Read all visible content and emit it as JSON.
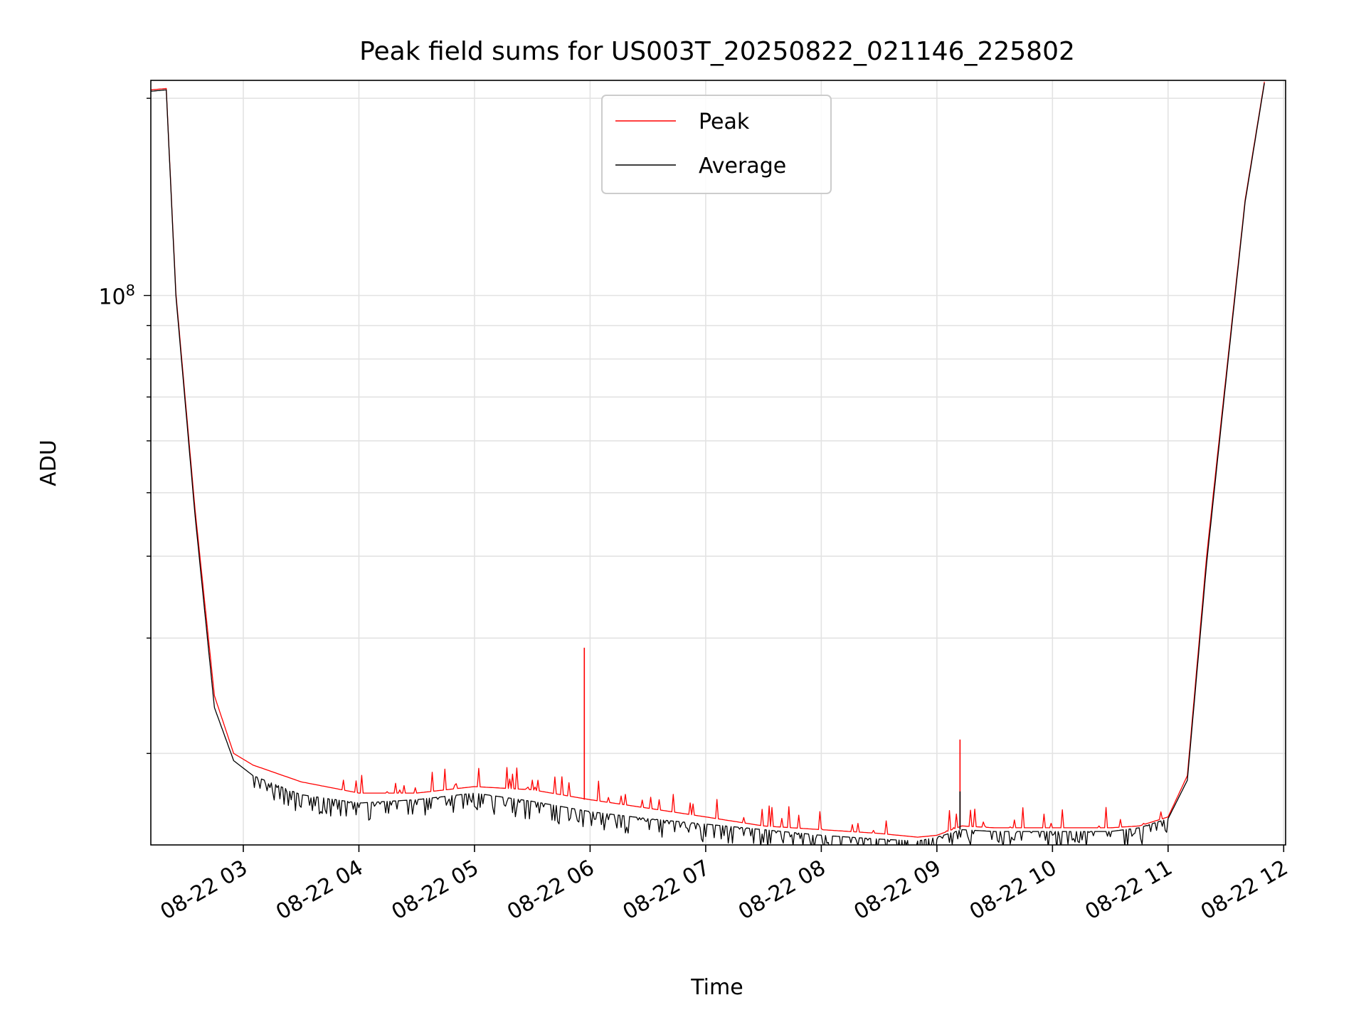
{
  "chart_data": {
    "type": "line",
    "title": "Peak field sums for US003T_20250822_021146_225802",
    "xlabel": "Time",
    "ylabel": "ADU",
    "yscale": "log",
    "grid": true,
    "legend_position": "upper center",
    "xlim": [
      "2025-08-22 02:12",
      "2025-08-22 12:01"
    ],
    "ylim": [
      14500000,
      213000000
    ],
    "x_ticks": [
      "08-22 03",
      "08-22 04",
      "08-22 05",
      "08-22 06",
      "08-22 07",
      "08-22 08",
      "08-22 09",
      "08-22 10",
      "08-22 11",
      "08-22 12"
    ],
    "x_tick_times": [
      "2025-08-22 03:00",
      "2025-08-22 04:00",
      "2025-08-22 05:00",
      "2025-08-22 06:00",
      "2025-08-22 07:00",
      "2025-08-22 08:00",
      "2025-08-22 09:00",
      "2025-08-22 10:00",
      "2025-08-22 11:00",
      "2025-08-22 12:00"
    ],
    "y_ticks": [
      {
        "value": 100000000,
        "base": "10",
        "exponent": "8"
      }
    ],
    "series": [
      {
        "name": "Peak",
        "color": "#ff0000",
        "x": [
          "2025-08-22 02:12",
          "2025-08-22 02:20",
          "2025-08-22 02:25",
          "2025-08-22 02:35",
          "2025-08-22 02:45",
          "2025-08-22 02:55",
          "2025-08-22 03:05",
          "2025-08-22 03:30",
          "2025-08-22 04:00",
          "2025-08-22 04:30",
          "2025-08-22 05:00",
          "2025-08-22 05:30",
          "2025-08-22 06:00",
          "2025-08-22 06:30",
          "2025-08-22 07:00",
          "2025-08-22 07:30",
          "2025-08-22 08:00",
          "2025-08-22 08:30",
          "2025-08-22 08:50",
          "2025-08-22 09:00",
          "2025-08-22 09:13",
          "2025-08-22 09:30",
          "2025-08-22 10:00",
          "2025-08-22 10:30",
          "2025-08-22 10:45",
          "2025-08-22 11:00",
          "2025-08-22 11:10",
          "2025-08-22 11:20",
          "2025-08-22 11:30",
          "2025-08-22 11:40",
          "2025-08-22 11:50"
        ],
        "y": [
          206000000,
          207000000,
          101000000,
          47000000,
          24500000,
          20000000,
          19200000,
          18100000,
          17400000,
          17400000,
          17800000,
          17600000,
          17000000,
          16500000,
          16000000,
          15500000,
          15300000,
          15100000,
          14900000,
          15000000,
          15500000,
          15400000,
          15400000,
          15400000,
          15500000,
          16000000,
          18500000,
          40000000,
          75000000,
          140000000,
          212000000
        ],
        "spikes": [
          {
            "x": "2025-08-22 05:57",
            "y": 29000000
          },
          {
            "x": "2025-08-22 09:12",
            "y": 21000000
          }
        ]
      },
      {
        "name": "Average",
        "color": "#000000",
        "x": [
          "2025-08-22 02:12",
          "2025-08-22 02:20",
          "2025-08-22 02:25",
          "2025-08-22 02:35",
          "2025-08-22 02:45",
          "2025-08-22 02:55",
          "2025-08-22 03:05",
          "2025-08-22 03:30",
          "2025-08-22 04:00",
          "2025-08-22 04:30",
          "2025-08-22 05:00",
          "2025-08-22 05:30",
          "2025-08-22 06:00",
          "2025-08-22 06:30",
          "2025-08-22 07:00",
          "2025-08-22 07:30",
          "2025-08-22 08:00",
          "2025-08-22 08:30",
          "2025-08-22 08:50",
          "2025-08-22 09:00",
          "2025-08-22 09:13",
          "2025-08-22 09:30",
          "2025-08-22 10:00",
          "2025-08-22 10:30",
          "2025-08-22 10:45",
          "2025-08-22 11:00",
          "2025-08-22 11:10",
          "2025-08-22 11:20",
          "2025-08-22 11:30",
          "2025-08-22 11:40",
          "2025-08-22 11:50"
        ],
        "y": [
          205000000,
          206000000,
          100000000,
          46000000,
          23500000,
          19500000,
          18500000,
          17300000,
          16800000,
          17000000,
          17400000,
          16900000,
          16300000,
          15900000,
          15600000,
          15300000,
          15000000,
          14800000,
          14700000,
          14900000,
          15300000,
          15200000,
          15200000,
          15200000,
          15400000,
          15900000,
          18200000,
          39000000,
          74000000,
          139000000,
          211000000
        ],
        "spikes": [
          {
            "x": "2025-08-22 09:12",
            "y": 17500000
          }
        ]
      }
    ]
  }
}
